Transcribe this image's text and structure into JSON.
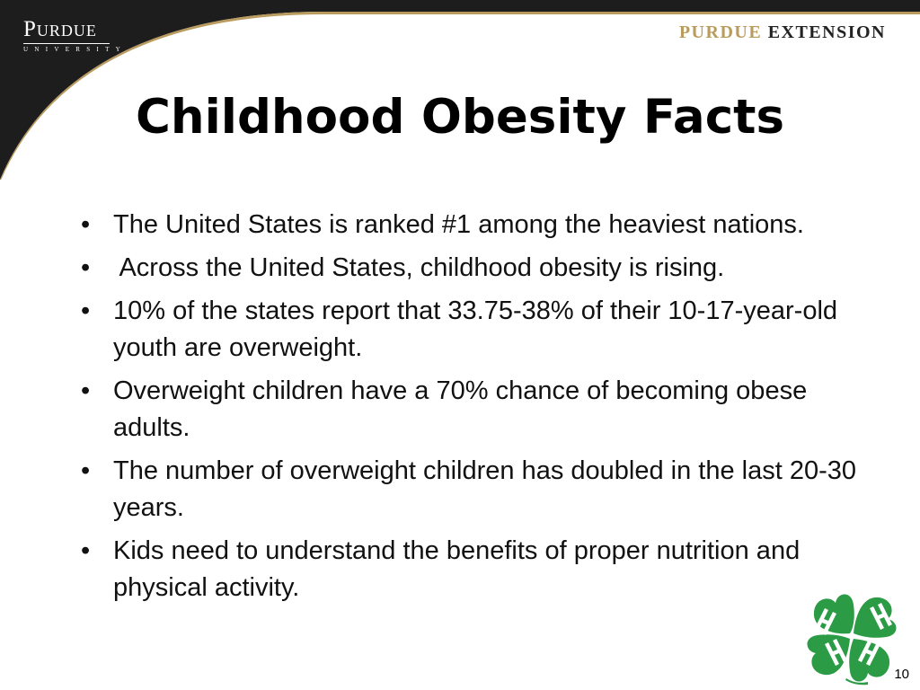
{
  "header": {
    "university_name": "Purdue",
    "university_sub": "UNIVERSITY",
    "brand_first": "PURDUE",
    "brand_second": "EXTENSION"
  },
  "title": "Childhood Obesity Facts",
  "bullets": [
    "The United States is ranked #1 among the heaviest nations.",
    " Across the United States, childhood obesity is rising.",
    "10% of the states report that 33.75-38% of their 10-17-year-old youth are overweight.",
    "Overweight children have a 70% chance of becoming obese adults.",
    "The number of overweight children has doubled in the last 20-30 years.",
    "Kids need to understand the benefits of proper nutrition and physical activity."
  ],
  "bullet_glyph": "•",
  "page_number": "10",
  "colors": {
    "header_dark": "#1d1d1d",
    "gold": "#b99b5e",
    "clover_green": "#2b9b45"
  },
  "icons": {
    "clover": "4h-clover-icon"
  }
}
